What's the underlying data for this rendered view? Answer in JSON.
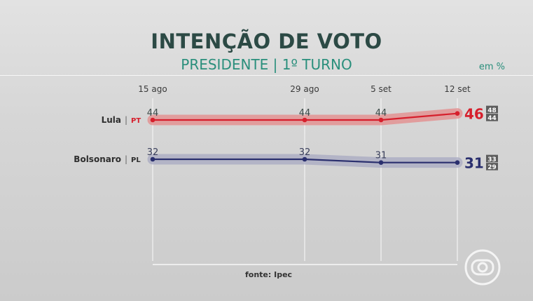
{
  "header": {
    "title": "INTENÇÃO DE VOTO",
    "subtitle": "PRESIDENTE | 1º TURNO",
    "unit": "em %"
  },
  "footer": {
    "source": "fonte: Ipec"
  },
  "chart_data": {
    "type": "line",
    "title": "INTENÇÃO DE VOTO",
    "subtitle": "PRESIDENTE | 1º TURNO",
    "categories": [
      "15 ago",
      "29 ago",
      "5 set",
      "12 set"
    ],
    "series": [
      {
        "name": "Lula",
        "party": "PT",
        "values": [
          44,
          44,
          44,
          46
        ],
        "color": "#d61f2c",
        "band_color": "#e48a8a",
        "margin_upper": "48",
        "margin_lower": "44"
      },
      {
        "name": "Bolsonaro",
        "party": "PL",
        "values": [
          32,
          32,
          31,
          31
        ],
        "color": "#2a2f6e",
        "band_color": "#a8a9c2",
        "margin_upper": "33",
        "margin_lower": "29"
      }
    ],
    "grid": "vertical"
  },
  "colors": {
    "title": "#2c4a45",
    "subtitle": "#2a8f7c",
    "lula": "#d61f2c",
    "bolsonaro": "#2a2f6e"
  }
}
